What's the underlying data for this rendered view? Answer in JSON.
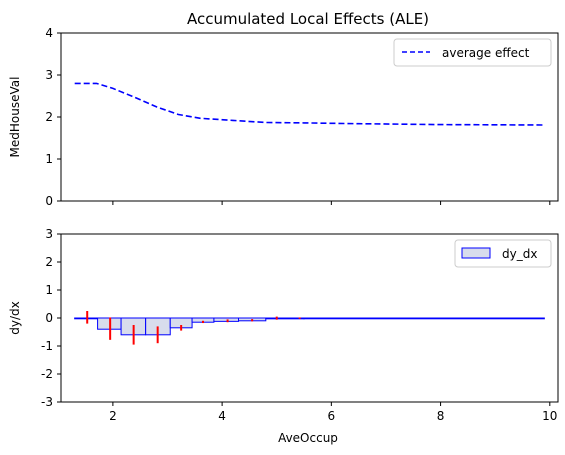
{
  "chart_data": [
    {
      "type": "line",
      "title": "Accumulated Local Effects (ALE)",
      "ylabel": "MedHouseVal",
      "xlabel": "",
      "xlim": [
        1.05,
        10.15
      ],
      "ylim": [
        0,
        4
      ],
      "yticks": [
        0,
        1,
        2,
        3,
        4
      ],
      "xticks": [
        2,
        4,
        6,
        8,
        10
      ],
      "show_xtick_labels": false,
      "grid": false,
      "legend": "top-right",
      "series": [
        {
          "name": "average effect",
          "color": "#0000ff",
          "linestyle": "dashed",
          "x": [
            1.3,
            1.7,
            2.0,
            2.4,
            2.8,
            3.2,
            3.6,
            4.2,
            4.8,
            5.5,
            6.5,
            8.0,
            9.9
          ],
          "y": [
            2.8,
            2.8,
            2.68,
            2.47,
            2.24,
            2.06,
            1.97,
            1.92,
            1.87,
            1.86,
            1.84,
            1.82,
            1.81
          ]
        }
      ]
    },
    {
      "type": "bar",
      "xlabel": "AveOccup",
      "ylabel": "dy/dx",
      "xlim": [
        1.05,
        10.15
      ],
      "ylim": [
        -3,
        3
      ],
      "yticks": [
        -3,
        -2,
        -1,
        0,
        1,
        2,
        3
      ],
      "xticks": [
        2,
        4,
        6,
        8,
        10
      ],
      "xtick_labels": [
        "2",
        "4",
        "6",
        "8",
        "10"
      ],
      "grid": false,
      "legend": "top-right",
      "bar_fill": "#d8dcec",
      "bar_edge": "#0000ff",
      "error_color": "#ff0000",
      "series": [
        {
          "name": "dy_dx",
          "bins": [
            [
              1.3,
              1.72,
              0.0
            ],
            [
              1.72,
              2.15,
              -0.4
            ],
            [
              2.15,
              2.6,
              -0.6
            ],
            [
              2.6,
              3.05,
              -0.6
            ],
            [
              3.05,
              3.45,
              -0.35
            ],
            [
              3.45,
              3.85,
              -0.15
            ],
            [
              3.85,
              4.3,
              -0.12
            ],
            [
              4.3,
              4.8,
              -0.1
            ],
            [
              4.8,
              5.5,
              -0.03
            ],
            [
              5.5,
              9.9,
              0.0
            ]
          ],
          "errors": [
            [
              1.53,
              -0.2,
              0.25
            ],
            [
              1.95,
              -0.78,
              0.02
            ],
            [
              2.38,
              -0.95,
              -0.25
            ],
            [
              2.82,
              -0.9,
              -0.3
            ],
            [
              3.25,
              -0.45,
              -0.25
            ],
            [
              3.65,
              -0.18,
              -0.1
            ],
            [
              4.1,
              -0.15,
              -0.05
            ],
            [
              4.55,
              -0.12,
              -0.04
            ],
            [
              5.0,
              -0.06,
              0.05
            ],
            [
              5.42,
              -0.03,
              0.02
            ]
          ]
        }
      ]
    }
  ]
}
